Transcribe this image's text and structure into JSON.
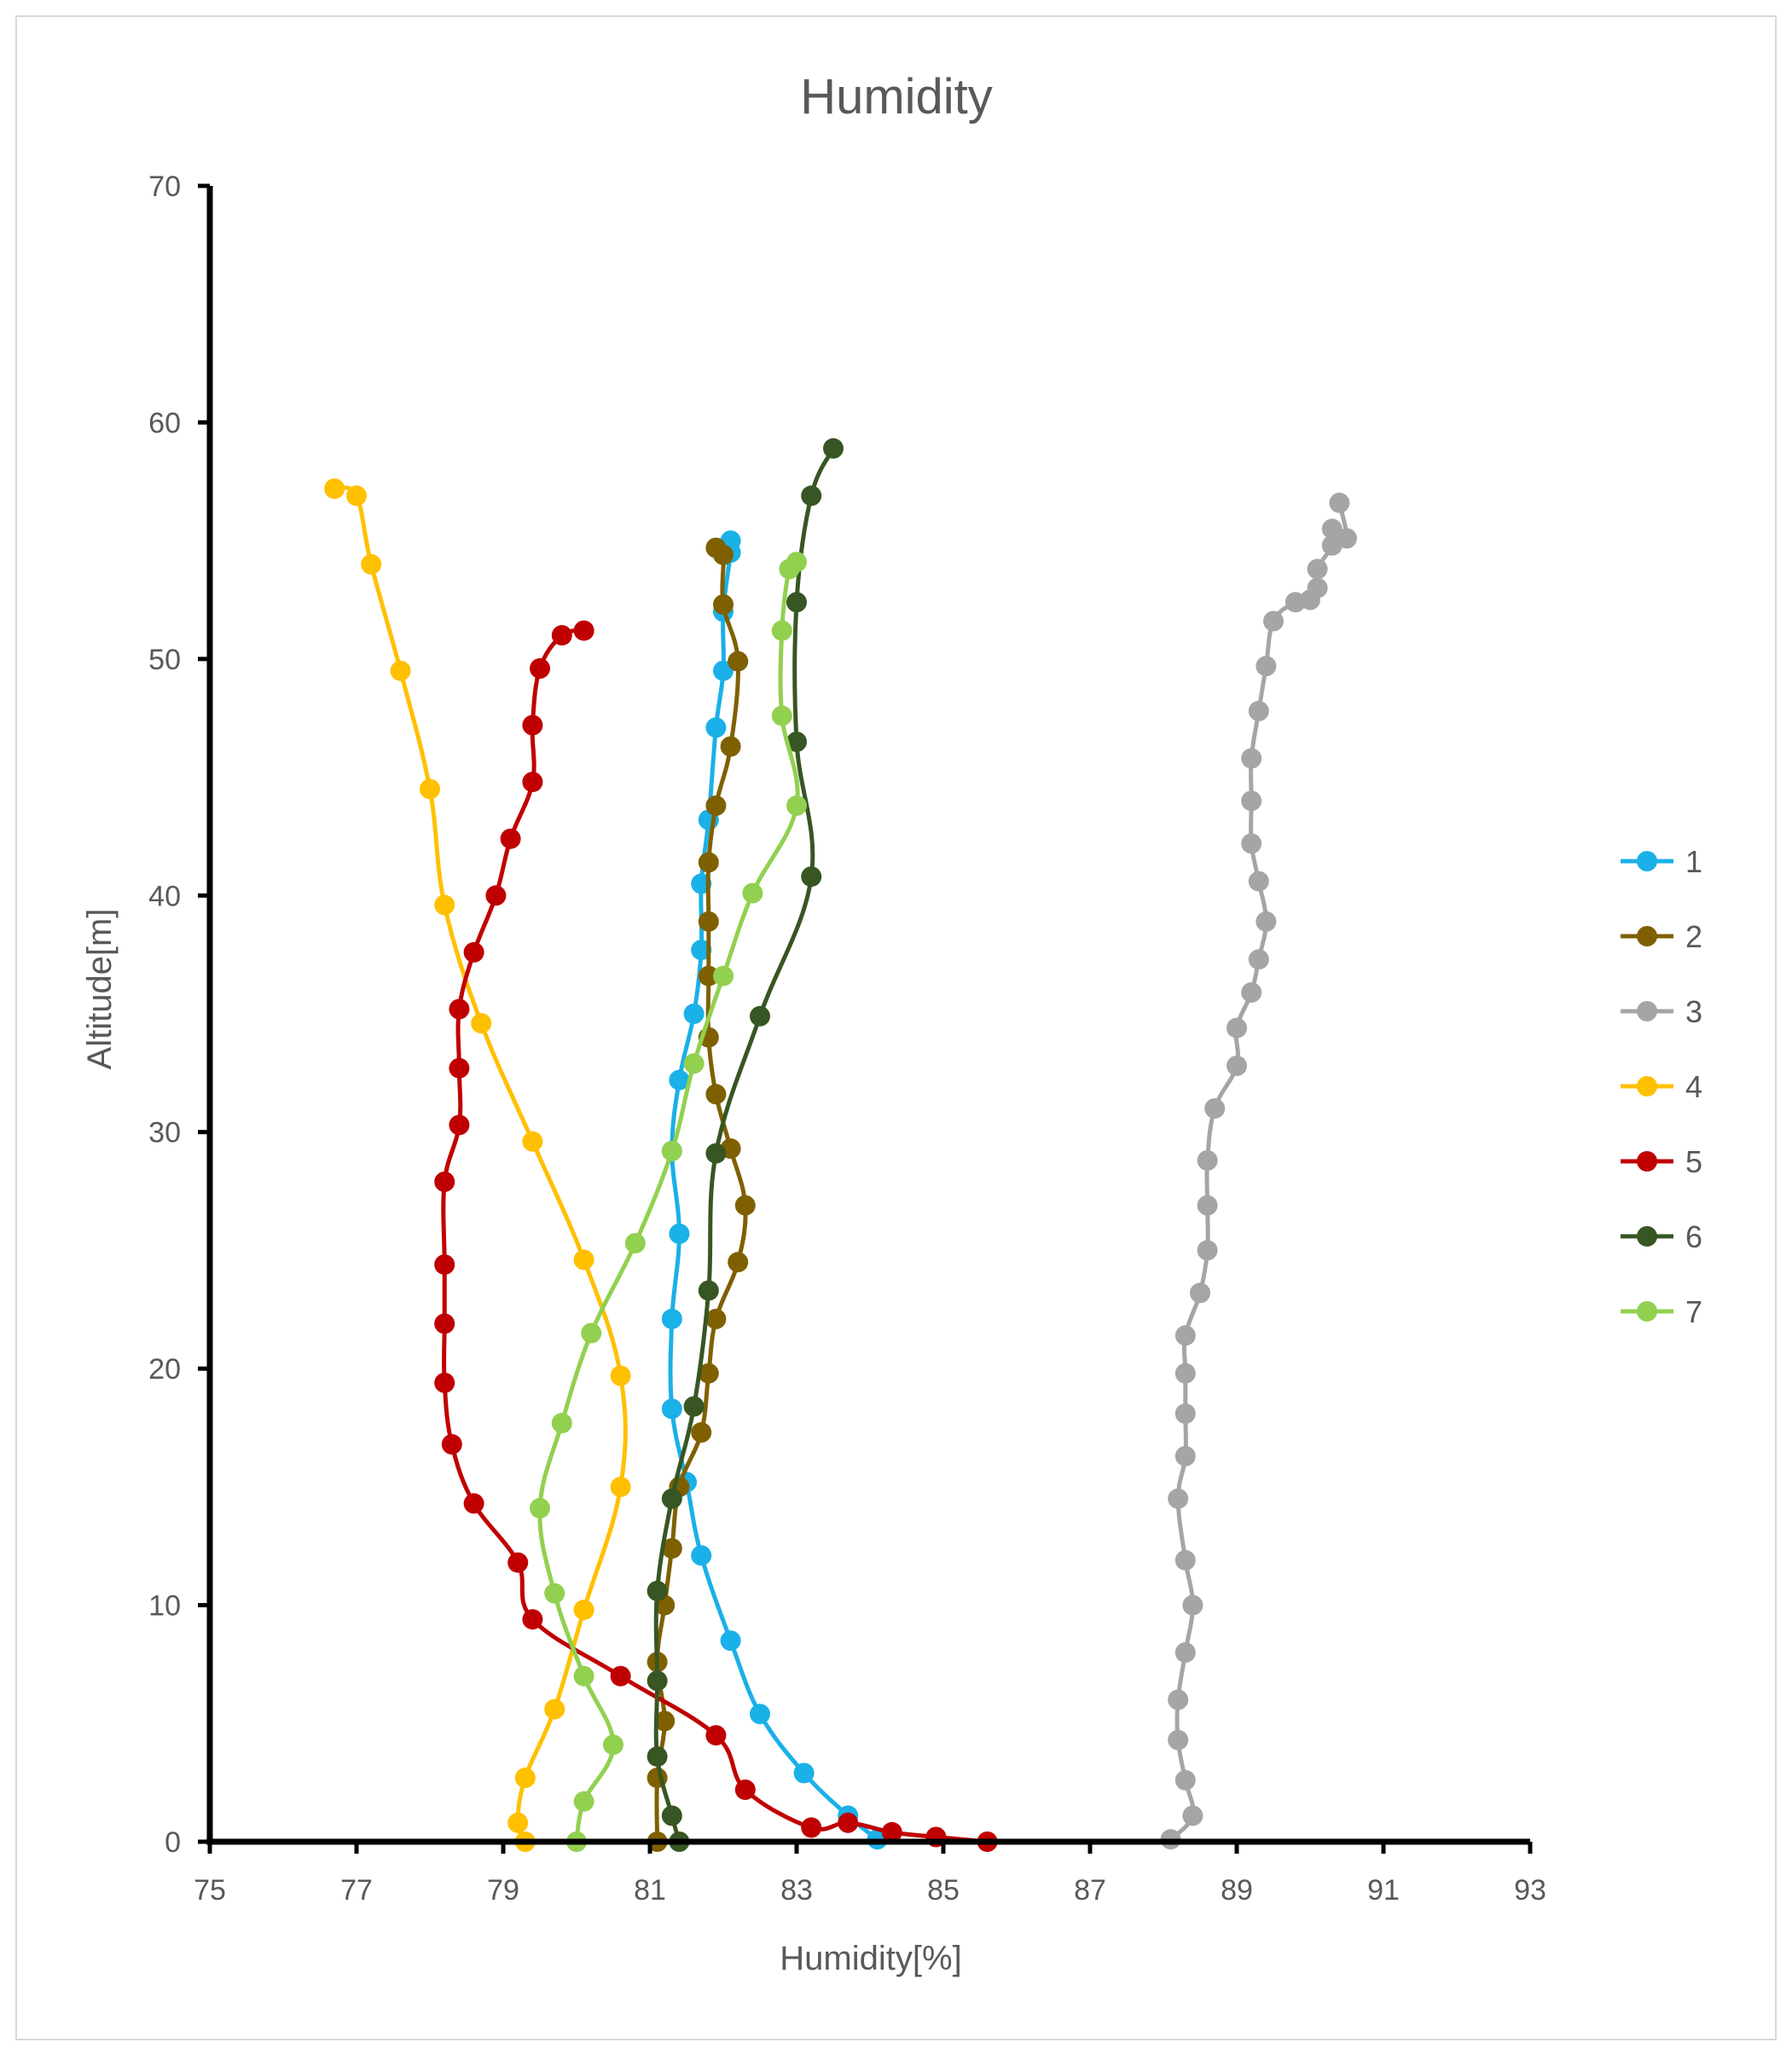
{
  "chart_data": {
    "type": "line",
    "title": "Humidity",
    "xlabel": "Humidity[%]",
    "ylabel": "Altitude[m]",
    "xlim": [
      75,
      93
    ],
    "ylim": [
      0,
      70
    ],
    "xticks": [
      75,
      77,
      79,
      81,
      83,
      85,
      87,
      89,
      91,
      93
    ],
    "yticks": [
      0,
      10,
      20,
      30,
      40,
      50,
      60,
      70
    ],
    "x_tick_labels": [
      "75",
      "77",
      "79",
      "81",
      "83",
      "85",
      "87",
      "89",
      "91",
      "93"
    ],
    "y_tick_labels": [
      "0",
      "10",
      "20",
      "30",
      "40",
      "50",
      "60",
      "70"
    ],
    "grid": false,
    "legend_position": "right",
    "series": [
      {
        "name": "1",
        "color": "#1ab0e8",
        "points": [
          [
            84.1,
            0.1
          ],
          [
            83.7,
            1.1
          ],
          [
            83.1,
            2.9
          ],
          [
            82.5,
            5.4
          ],
          [
            82.1,
            8.5
          ],
          [
            81.7,
            12.1
          ],
          [
            81.5,
            15.2
          ],
          [
            81.3,
            18.3
          ],
          [
            81.3,
            22.1
          ],
          [
            81.4,
            25.7
          ],
          [
            81.3,
            29.2
          ],
          [
            81.4,
            32.2
          ],
          [
            81.6,
            35.0
          ],
          [
            81.7,
            37.7
          ],
          [
            81.7,
            40.5
          ],
          [
            81.8,
            43.2
          ],
          [
            81.9,
            47.1
          ],
          [
            82.0,
            49.5
          ],
          [
            82.0,
            52.0
          ],
          [
            82.1,
            54.5
          ],
          [
            82.1,
            55.0
          ]
        ]
      },
      {
        "name": "2",
        "color": "#7f6000",
        "points": [
          [
            81.1,
            0.0
          ],
          [
            81.1,
            2.7
          ],
          [
            81.2,
            5.1
          ],
          [
            81.1,
            7.6
          ],
          [
            81.2,
            10.0
          ],
          [
            81.3,
            12.4
          ],
          [
            81.4,
            15.0
          ],
          [
            81.7,
            17.3
          ],
          [
            81.8,
            19.8
          ],
          [
            81.9,
            22.1
          ],
          [
            82.2,
            24.5
          ],
          [
            82.3,
            26.9
          ],
          [
            82.1,
            29.3
          ],
          [
            81.9,
            31.6
          ],
          [
            81.8,
            34.0
          ],
          [
            81.8,
            36.6
          ],
          [
            81.8,
            38.9
          ],
          [
            81.8,
            41.4
          ],
          [
            81.9,
            43.8
          ],
          [
            82.1,
            46.3
          ],
          [
            82.2,
            49.9
          ],
          [
            82.0,
            52.3
          ],
          [
            82.0,
            54.4
          ],
          [
            81.9,
            54.7
          ]
        ]
      },
      {
        "name": "3",
        "color": "#a5a5a5",
        "points": [
          [
            88.1,
            0.1
          ],
          [
            88.4,
            1.1
          ],
          [
            88.3,
            2.6
          ],
          [
            88.2,
            4.3
          ],
          [
            88.2,
            6.0
          ],
          [
            88.3,
            8.0
          ],
          [
            88.4,
            10.0
          ],
          [
            88.3,
            11.9
          ],
          [
            88.2,
            14.5
          ],
          [
            88.3,
            16.3
          ],
          [
            88.3,
            18.1
          ],
          [
            88.3,
            19.8
          ],
          [
            88.3,
            21.4
          ],
          [
            88.5,
            23.2
          ],
          [
            88.6,
            25.0
          ],
          [
            88.6,
            26.9
          ],
          [
            88.6,
            28.8
          ],
          [
            88.7,
            31.0
          ],
          [
            89.0,
            32.8
          ],
          [
            89.0,
            34.4
          ],
          [
            89.2,
            35.9
          ],
          [
            89.3,
            37.3
          ],
          [
            89.4,
            38.9
          ],
          [
            89.3,
            40.6
          ],
          [
            89.2,
            42.2
          ],
          [
            89.2,
            44.0
          ],
          [
            89.2,
            45.8
          ],
          [
            89.3,
            47.8
          ],
          [
            89.4,
            49.7
          ],
          [
            89.5,
            51.6
          ],
          [
            89.8,
            52.4
          ],
          [
            90.0,
            52.5
          ],
          [
            90.1,
            53.0
          ],
          [
            90.1,
            53.8
          ],
          [
            90.3,
            54.8
          ],
          [
            90.3,
            55.5
          ],
          [
            90.5,
            55.1
          ],
          [
            90.4,
            56.6
          ]
        ]
      },
      {
        "name": "4",
        "color": "#ffc000",
        "points": [
          [
            79.3,
            0.0
          ],
          [
            79.2,
            0.8
          ],
          [
            79.3,
            2.7
          ],
          [
            79.7,
            5.6
          ],
          [
            80.1,
            9.8
          ],
          [
            80.6,
            15.0
          ],
          [
            80.6,
            19.7
          ],
          [
            80.1,
            24.6
          ],
          [
            79.4,
            29.6
          ],
          [
            78.7,
            34.6
          ],
          [
            78.2,
            39.6
          ],
          [
            78.0,
            44.5
          ],
          [
            77.6,
            49.5
          ],
          [
            77.2,
            54.0
          ],
          [
            77.0,
            56.9
          ],
          [
            76.7,
            57.2
          ]
        ]
      },
      {
        "name": "5",
        "color": "#c00000",
        "points": [
          [
            85.6,
            0.0
          ],
          [
            84.9,
            0.2
          ],
          [
            84.3,
            0.4
          ],
          [
            83.7,
            0.8
          ],
          [
            83.2,
            0.6
          ],
          [
            82.3,
            2.2
          ],
          [
            81.9,
            4.5
          ],
          [
            80.6,
            7.0
          ],
          [
            79.4,
            9.4
          ],
          [
            79.2,
            11.8
          ],
          [
            78.6,
            14.3
          ],
          [
            78.3,
            16.8
          ],
          [
            78.2,
            19.4
          ],
          [
            78.2,
            21.9
          ],
          [
            78.2,
            24.4
          ],
          [
            78.2,
            27.9
          ],
          [
            78.4,
            30.3
          ],
          [
            78.4,
            32.7
          ],
          [
            78.4,
            35.2
          ],
          [
            78.6,
            37.6
          ],
          [
            78.9,
            40.0
          ],
          [
            79.1,
            42.4
          ],
          [
            79.4,
            44.8
          ],
          [
            79.4,
            47.2
          ],
          [
            79.5,
            49.6
          ],
          [
            79.8,
            51.0
          ],
          [
            80.1,
            51.2
          ]
        ]
      },
      {
        "name": "6",
        "color": "#375623",
        "points": [
          [
            81.4,
            0.0
          ],
          [
            81.3,
            1.1
          ],
          [
            81.1,
            3.6
          ],
          [
            81.1,
            6.8
          ],
          [
            81.1,
            10.6
          ],
          [
            81.3,
            14.5
          ],
          [
            81.6,
            18.4
          ],
          [
            81.8,
            23.3
          ],
          [
            81.9,
            29.1
          ],
          [
            82.5,
            34.9
          ],
          [
            83.2,
            40.8
          ],
          [
            83.0,
            46.5
          ],
          [
            83.0,
            52.4
          ],
          [
            83.2,
            56.9
          ],
          [
            83.5,
            58.9
          ]
        ]
      },
      {
        "name": "7",
        "color": "#92d050",
        "points": [
          [
            80.0,
            0.0
          ],
          [
            80.1,
            1.7
          ],
          [
            80.5,
            4.1
          ],
          [
            80.1,
            7.0
          ],
          [
            79.7,
            10.5
          ],
          [
            79.5,
            14.1
          ],
          [
            79.8,
            17.7
          ],
          [
            80.2,
            21.5
          ],
          [
            80.8,
            25.3
          ],
          [
            81.3,
            29.2
          ],
          [
            81.6,
            32.9
          ],
          [
            82.0,
            36.6
          ],
          [
            82.4,
            40.1
          ],
          [
            83.0,
            43.8
          ],
          [
            82.8,
            47.6
          ],
          [
            82.8,
            51.2
          ],
          [
            82.9,
            53.8
          ],
          [
            83.0,
            54.1
          ]
        ]
      }
    ]
  }
}
